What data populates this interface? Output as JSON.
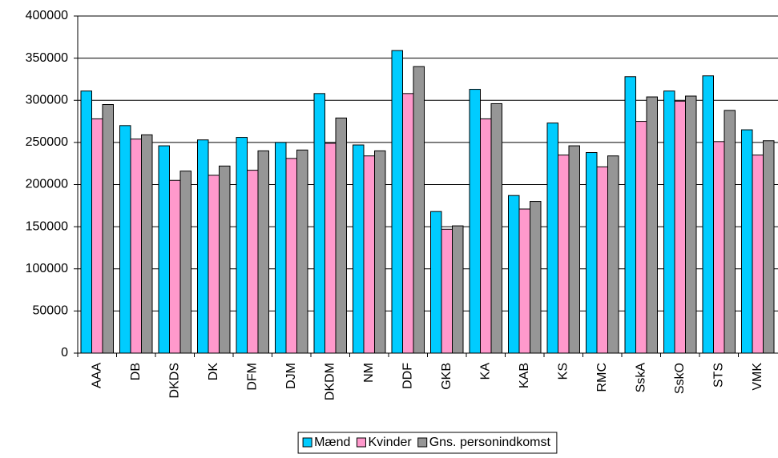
{
  "chart_data": {
    "type": "bar",
    "categories": [
      "AAA",
      "DB",
      "DKDS",
      "DK",
      "DFM",
      "DJM",
      "DKDM",
      "NM",
      "DDF",
      "GKB",
      "KA",
      "KAB",
      "KS",
      "RMC",
      "SskA",
      "SskO",
      "STS",
      "VMK"
    ],
    "series": [
      {
        "name": "Mænd",
        "color": "#00ccff",
        "values": [
          311000,
          270000,
          246000,
          253000,
          256000,
          250000,
          308000,
          247000,
          359000,
          168000,
          313000,
          187000,
          273000,
          238000,
          328000,
          311000,
          329000,
          265000
        ]
      },
      {
        "name": "Kvinder",
        "color": "#ff99cc",
        "values": [
          278000,
          254000,
          205000,
          211000,
          217000,
          231000,
          249000,
          234000,
          308000,
          147000,
          278000,
          171000,
          235000,
          221000,
          275000,
          299000,
          251000,
          235000
        ]
      },
      {
        "name": "Gns. personindkomst",
        "color": "#969696",
        "values": [
          295000,
          259000,
          216000,
          222000,
          240000,
          241000,
          279000,
          240000,
          340000,
          151000,
          296000,
          180000,
          246000,
          234000,
          304000,
          305000,
          288000,
          252000
        ]
      }
    ],
    "ylim": [
      0,
      400000
    ],
    "yticks": [
      0,
      50000,
      100000,
      150000,
      200000,
      250000,
      300000,
      350000,
      400000
    ],
    "grid": true,
    "legend": "bottom"
  }
}
